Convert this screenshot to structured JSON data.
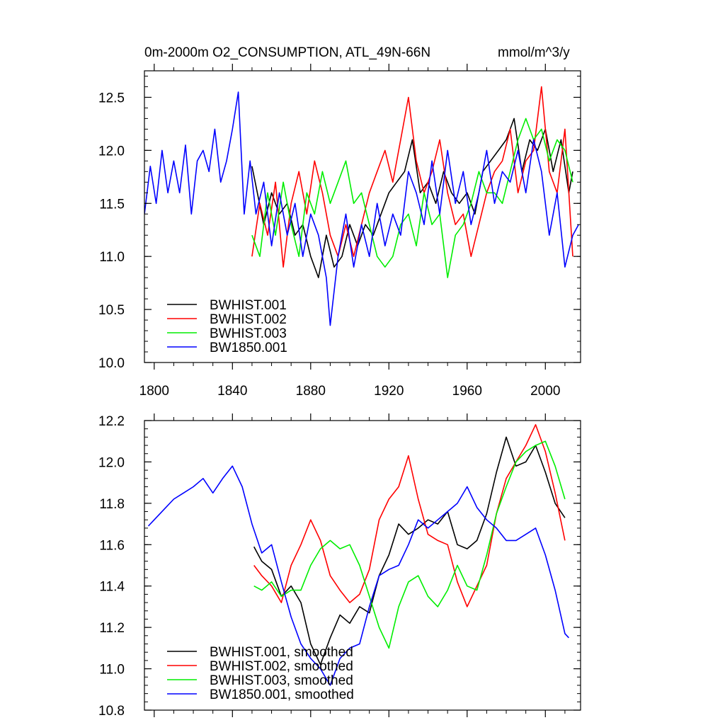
{
  "title_left": "0m-2000m O2_CONSUMPTION, ATL_49N-66N",
  "title_right": "mmol/m^3/y",
  "chart_data": [
    {
      "type": "line",
      "title": "0m-2000m O2_CONSUMPTION, ATL_49N-66N",
      "units": "mmol/m^3/y",
      "xlim": [
        1795,
        2018
      ],
      "ylim": [
        10.0,
        12.75
      ],
      "xticks": [
        1800,
        1840,
        1880,
        1920,
        1960,
        2000
      ],
      "yticks": [
        10.0,
        10.5,
        11.0,
        11.5,
        12.0,
        12.5
      ],
      "xtick_labels": [
        "1800",
        "1840",
        "1880",
        "1920",
        "1960",
        "2000"
      ],
      "ytick_labels": [
        "10.0",
        "10.5",
        "11.0",
        "11.5",
        "12.0",
        "12.5"
      ],
      "legend_position": "bottom-left",
      "series": [
        {
          "name": "BWHIST.001",
          "color": "#000000",
          "x": [
            1850,
            1856,
            1860,
            1864,
            1868,
            1872,
            1876,
            1880,
            1884,
            1888,
            1892,
            1896,
            1900,
            1904,
            1908,
            1912,
            1916,
            1920,
            1924,
            1928,
            1932,
            1936,
            1940,
            1944,
            1948,
            1952,
            1956,
            1960,
            1964,
            1968,
            1972,
            1976,
            1980,
            1984,
            1988,
            1992,
            1996,
            2000,
            2004,
            2008,
            2012,
            2014
          ],
          "y": [
            11.85,
            11.3,
            11.6,
            11.4,
            11.5,
            11.2,
            11.3,
            11.0,
            10.8,
            11.2,
            10.9,
            11.0,
            11.3,
            11.1,
            11.3,
            11.2,
            11.4,
            11.6,
            11.7,
            11.8,
            12.1,
            11.6,
            11.7,
            11.5,
            11.8,
            11.6,
            11.5,
            11.6,
            11.4,
            11.8,
            11.9,
            12.0,
            12.1,
            12.3,
            11.8,
            12.1,
            12.0,
            12.2,
            11.8,
            12.1,
            11.6,
            11.8
          ]
        },
        {
          "name": "BWHIST.002",
          "color": "#ff0000",
          "x": [
            1850,
            1854,
            1858,
            1862,
            1866,
            1870,
            1874,
            1878,
            1882,
            1886,
            1890,
            1894,
            1898,
            1902,
            1906,
            1910,
            1914,
            1918,
            1922,
            1926,
            1930,
            1934,
            1938,
            1942,
            1946,
            1950,
            1954,
            1958,
            1962,
            1966,
            1970,
            1974,
            1978,
            1982,
            1986,
            1990,
            1994,
            1998,
            2002,
            2006,
            2010,
            2014
          ],
          "y": [
            11.0,
            11.5,
            11.2,
            11.7,
            10.9,
            11.5,
            11.8,
            11.4,
            11.9,
            11.6,
            11.2,
            11.0,
            11.3,
            11.0,
            11.3,
            11.6,
            11.8,
            12.0,
            11.7,
            12.1,
            12.5,
            11.9,
            11.6,
            11.8,
            12.1,
            11.6,
            11.3,
            11.4,
            11.0,
            11.3,
            11.6,
            11.8,
            11.9,
            12.2,
            11.6,
            11.9,
            12.0,
            12.6,
            11.8,
            11.6,
            12.2,
            11.0
          ]
        },
        {
          "name": "BWHIST.003",
          "color": "#00ee00",
          "x": [
            1850,
            1854,
            1858,
            1862,
            1866,
            1870,
            1874,
            1878,
            1882,
            1886,
            1890,
            1894,
            1898,
            1902,
            1906,
            1910,
            1914,
            1918,
            1922,
            1926,
            1930,
            1934,
            1938,
            1942,
            1946,
            1950,
            1954,
            1958,
            1962,
            1966,
            1970,
            1974,
            1978,
            1982,
            1986,
            1990,
            1994,
            1998,
            2002,
            2006,
            2010,
            2014
          ],
          "y": [
            11.2,
            11.0,
            11.6,
            11.2,
            11.7,
            11.3,
            11.0,
            11.6,
            11.4,
            11.8,
            11.5,
            11.7,
            11.9,
            11.5,
            11.6,
            11.3,
            11.0,
            10.9,
            11.0,
            11.3,
            11.4,
            11.1,
            11.6,
            11.3,
            11.4,
            10.8,
            11.2,
            11.3,
            11.5,
            11.8,
            11.6,
            11.6,
            11.5,
            11.8,
            12.1,
            12.3,
            12.1,
            12.2,
            11.9,
            12.1,
            12.0,
            11.7
          ]
        },
        {
          "name": "BW1850.001",
          "color": "#0000ff",
          "x": [
            1795,
            1798,
            1801,
            1804,
            1807,
            1810,
            1813,
            1816,
            1819,
            1822,
            1825,
            1828,
            1831,
            1834,
            1837,
            1840,
            1843,
            1846,
            1849,
            1852,
            1856,
            1860,
            1864,
            1868,
            1872,
            1876,
            1880,
            1884,
            1888,
            1890,
            1894,
            1898,
            1902,
            1906,
            1910,
            1914,
            1918,
            1922,
            1926,
            1930,
            1934,
            1938,
            1942,
            1946,
            1950,
            1954,
            1958,
            1962,
            1966,
            1970,
            1974,
            1978,
            1982,
            1986,
            1990,
            1994,
            1998,
            2002,
            2006,
            2010,
            2014,
            2017
          ],
          "y": [
            11.4,
            11.85,
            11.5,
            12.0,
            11.6,
            11.9,
            11.6,
            12.05,
            11.4,
            11.9,
            12.0,
            11.8,
            12.2,
            11.7,
            11.9,
            12.2,
            12.55,
            11.4,
            11.9,
            11.4,
            11.7,
            11.1,
            11.6,
            11.2,
            11.5,
            11.0,
            11.4,
            11.2,
            10.8,
            10.35,
            11.0,
            11.4,
            10.9,
            11.3,
            11.0,
            11.5,
            11.1,
            11.4,
            11.2,
            11.8,
            11.6,
            11.3,
            11.9,
            11.4,
            12.0,
            11.5,
            11.8,
            11.3,
            11.6,
            12.0,
            11.5,
            11.8,
            11.7,
            12.0,
            11.6,
            12.1,
            11.8,
            11.2,
            11.6,
            10.9,
            11.2,
            11.3
          ]
        }
      ]
    },
    {
      "type": "line",
      "title": "",
      "xlim": [
        1795,
        2018
      ],
      "ylim": [
        10.8,
        12.2
      ],
      "yticks": [
        10.8,
        11.0,
        11.2,
        11.4,
        11.6,
        11.8,
        12.0,
        12.2
      ],
      "ytick_labels": [
        "10.8",
        "11.0",
        "11.2",
        "11.4",
        "11.6",
        "11.8",
        "12.0",
        "12.2"
      ],
      "legend_position": "bottom-left",
      "series": [
        {
          "name": "BWHIST.001, smoothed",
          "color": "#000000",
          "x": [
            1851,
            1855,
            1860,
            1865,
            1870,
            1875,
            1880,
            1885,
            1890,
            1895,
            1900,
            1905,
            1910,
            1915,
            1920,
            1925,
            1930,
            1935,
            1940,
            1945,
            1950,
            1955,
            1960,
            1965,
            1970,
            1975,
            1980,
            1985,
            1990,
            1995,
            2000,
            2005,
            2010
          ],
          "y": [
            11.59,
            11.52,
            11.48,
            11.35,
            11.4,
            11.32,
            11.12,
            11.02,
            11.15,
            11.26,
            11.22,
            11.3,
            11.27,
            11.45,
            11.55,
            11.7,
            11.65,
            11.68,
            11.72,
            11.7,
            11.76,
            11.6,
            11.58,
            11.62,
            11.75,
            11.95,
            12.12,
            11.98,
            12.0,
            12.08,
            11.95,
            11.8,
            11.73
          ]
        },
        {
          "name": "BWHIST.002, smoothed",
          "color": "#ff0000",
          "x": [
            1851,
            1855,
            1860,
            1865,
            1870,
            1875,
            1880,
            1885,
            1890,
            1895,
            1900,
            1905,
            1910,
            1915,
            1920,
            1925,
            1930,
            1935,
            1940,
            1945,
            1950,
            1955,
            1960,
            1965,
            1970,
            1975,
            1980,
            1985,
            1990,
            1995,
            2000,
            2005,
            2010
          ],
          "y": [
            11.5,
            11.45,
            11.4,
            11.32,
            11.5,
            11.6,
            11.72,
            11.62,
            11.45,
            11.38,
            11.32,
            11.36,
            11.48,
            11.72,
            11.82,
            11.88,
            12.03,
            11.82,
            11.65,
            11.62,
            11.6,
            11.42,
            11.3,
            11.4,
            11.5,
            11.75,
            11.92,
            12.0,
            12.08,
            12.18,
            12.05,
            11.85,
            11.62
          ]
        },
        {
          "name": "BWHIST.003, smoothed",
          "color": "#00ee00",
          "x": [
            1851,
            1855,
            1860,
            1865,
            1870,
            1875,
            1880,
            1885,
            1890,
            1895,
            1900,
            1905,
            1910,
            1915,
            1920,
            1925,
            1930,
            1935,
            1940,
            1945,
            1950,
            1955,
            1960,
            1965,
            1970,
            1975,
            1980,
            1985,
            1990,
            1995,
            2000,
            2005,
            2010
          ],
          "y": [
            11.4,
            11.38,
            11.42,
            11.35,
            11.38,
            11.38,
            11.5,
            11.58,
            11.62,
            11.58,
            11.6,
            11.5,
            11.35,
            11.2,
            11.1,
            11.3,
            11.42,
            11.45,
            11.35,
            11.3,
            11.38,
            11.5,
            11.4,
            11.38,
            11.55,
            11.75,
            11.88,
            12.0,
            12.05,
            12.08,
            12.1,
            11.98,
            11.82
          ]
        },
        {
          "name": "BW1850.001, smoothed",
          "color": "#0000ff",
          "x": [
            1797,
            1800,
            1805,
            1810,
            1815,
            1820,
            1825,
            1830,
            1835,
            1840,
            1845,
            1850,
            1855,
            1860,
            1865,
            1870,
            1875,
            1880,
            1885,
            1890,
            1895,
            1900,
            1905,
            1910,
            1915,
            1920,
            1925,
            1930,
            1935,
            1940,
            1945,
            1950,
            1955,
            1960,
            1965,
            1970,
            1975,
            1980,
            1985,
            1990,
            1995,
            2000,
            2005,
            2010,
            2012
          ],
          "y": [
            11.69,
            11.72,
            11.77,
            11.82,
            11.85,
            11.88,
            11.92,
            11.85,
            11.92,
            11.98,
            11.88,
            11.7,
            11.56,
            11.6,
            11.42,
            11.25,
            11.12,
            11.05,
            11.0,
            10.92,
            11.05,
            11.1,
            11.12,
            11.3,
            11.45,
            11.48,
            11.5,
            11.6,
            11.72,
            11.68,
            11.72,
            11.76,
            11.8,
            11.88,
            11.78,
            11.72,
            11.68,
            11.62,
            11.62,
            11.65,
            11.68,
            11.55,
            11.38,
            11.17,
            11.15
          ]
        }
      ]
    }
  ]
}
